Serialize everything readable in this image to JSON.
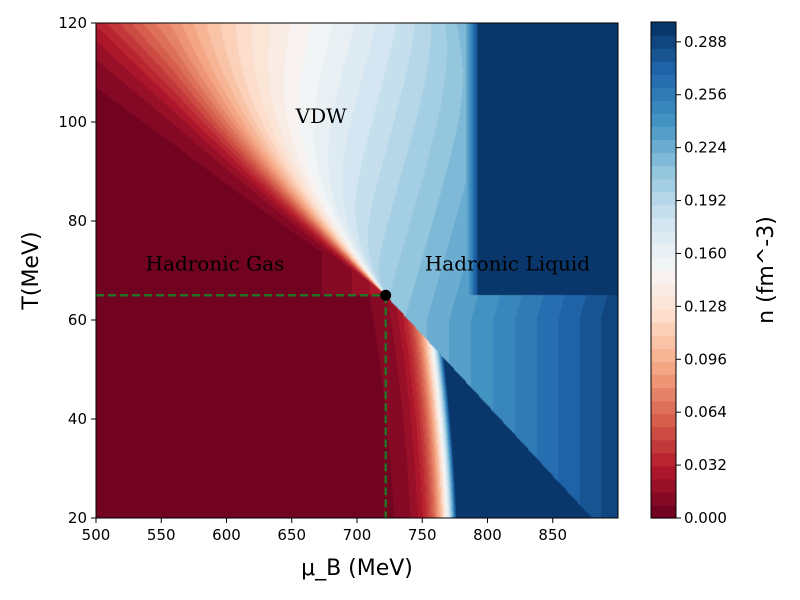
{
  "chart_data": {
    "type": "heatmap",
    "title": "",
    "xlabel": "μ_B (MeV)",
    "ylabel": "T(MeV)",
    "xlim": [
      500,
      900
    ],
    "ylim": [
      20,
      120
    ],
    "x_ticks": [
      "500",
      "550",
      "600",
      "650",
      "700",
      "750",
      "800",
      "850"
    ],
    "y_ticks": [
      "20",
      "40",
      "60",
      "80",
      "100",
      "120"
    ],
    "colorbar": {
      "label": "n (fm^-3)",
      "range": [
        0.0,
        0.3
      ],
      "ticks": [
        "0.000",
        "0.032",
        "0.064",
        "0.096",
        "0.128",
        "0.160",
        "0.192",
        "0.224",
        "0.256",
        "0.288"
      ],
      "colormap": "RdBu",
      "levels": 38
    },
    "critical_point": {
      "mu_B": 722,
      "T": 65
    },
    "phase_boundary": {
      "from": {
        "mu_B": 722,
        "T": 65
      },
      "to": {
        "mu_B": 880,
        "T": 20
      }
    },
    "annotations": [
      {
        "text": "VDW",
        "mu_B": 653,
        "T": 99
      },
      {
        "text": "Hadronic Gas",
        "mu_B": 538,
        "T": 70
      },
      {
        "text": "Hadronic Liquid",
        "mu_B": 752,
        "T": 70
      }
    ],
    "guide_lines": {
      "style": "dashed",
      "color": "#267326",
      "T": 65,
      "mu_B": 722
    }
  },
  "colors": {
    "critical_point": "#000000",
    "guide_line": "#267326"
  }
}
